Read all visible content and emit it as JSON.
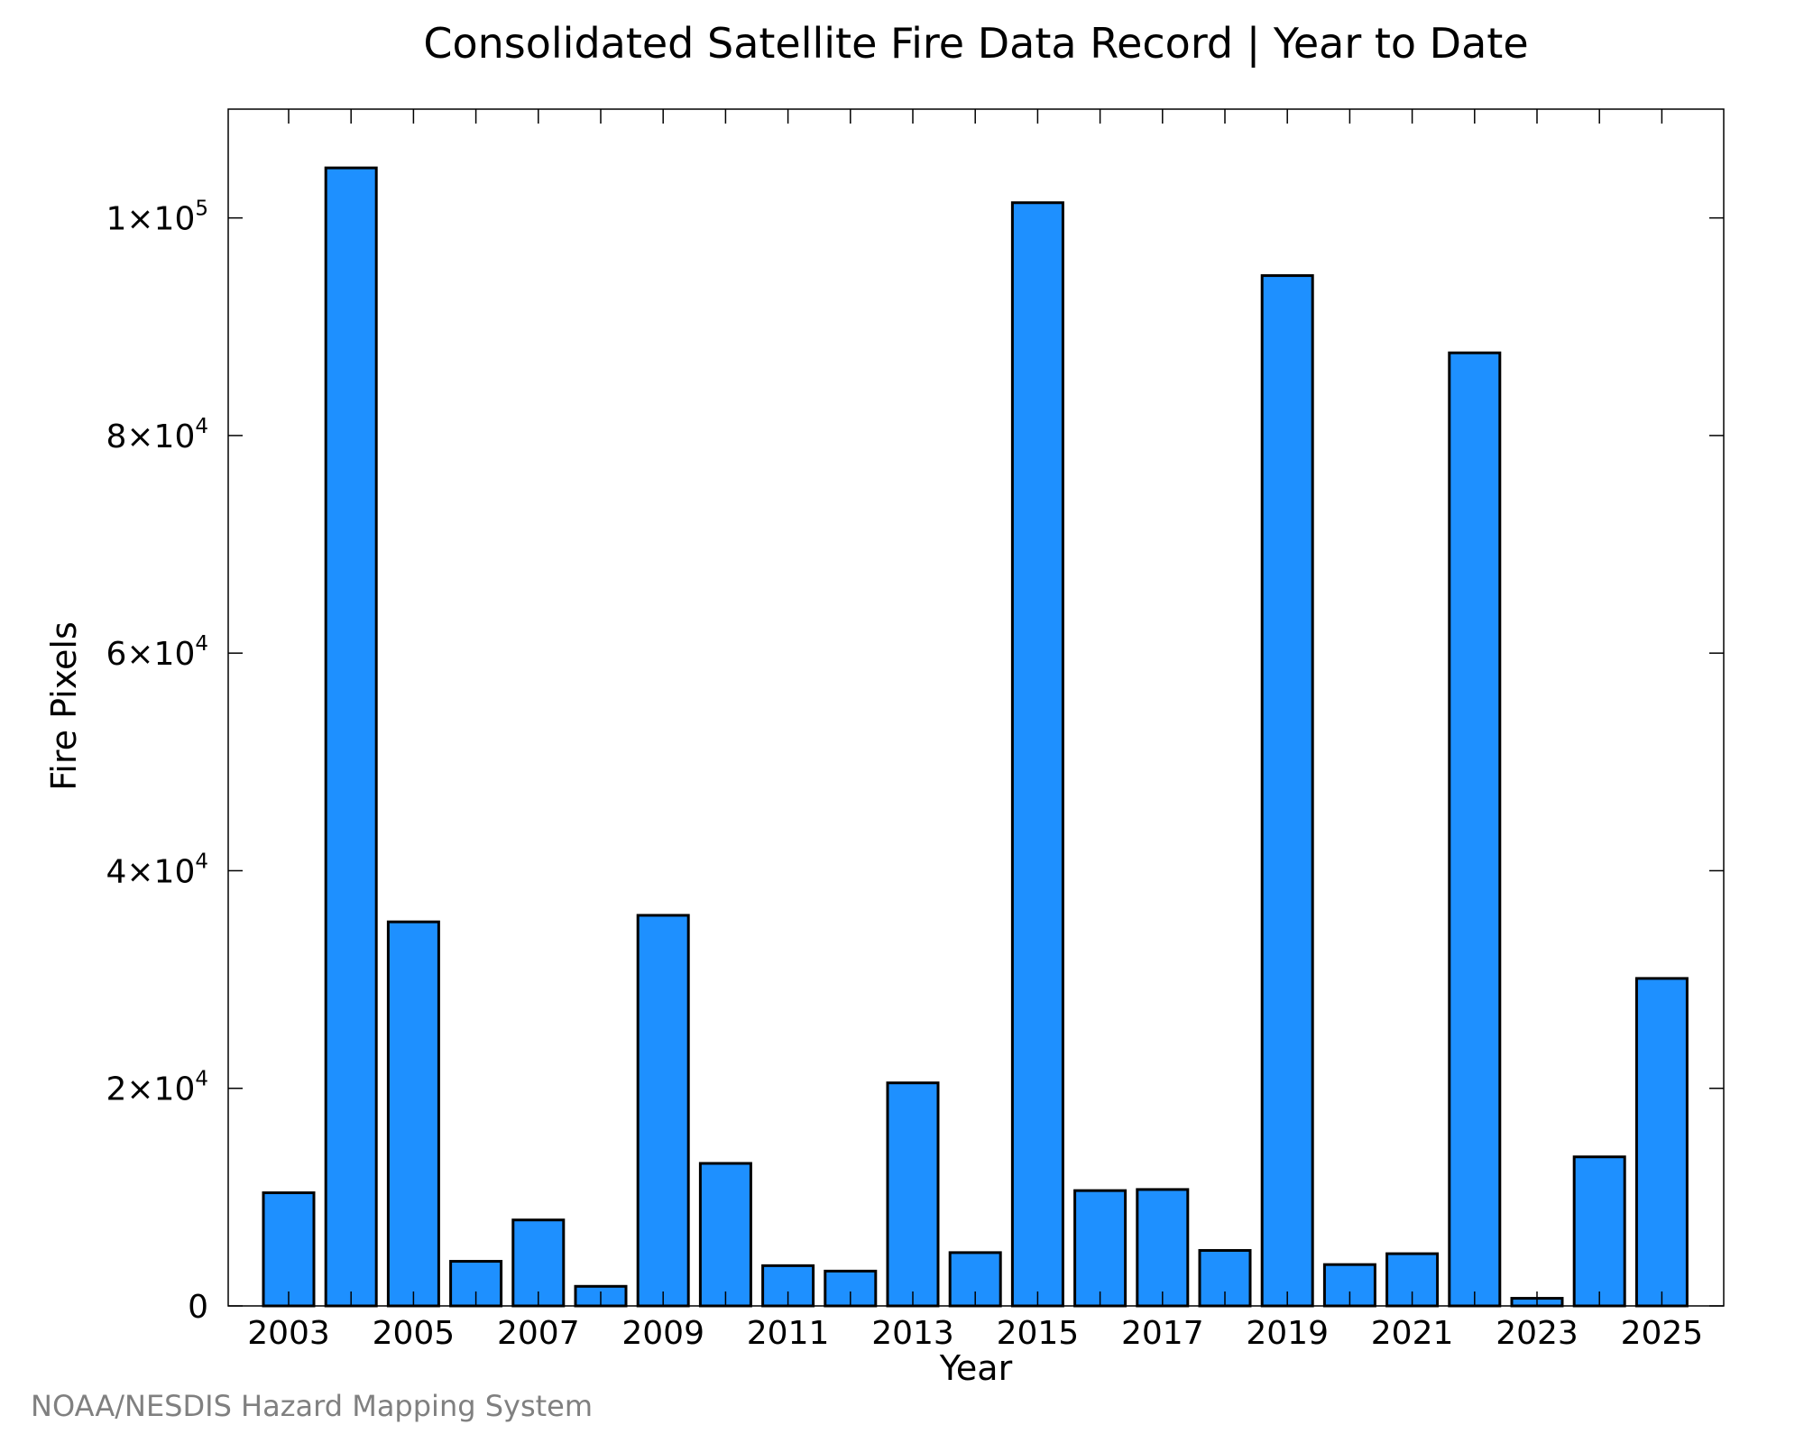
{
  "chart_data": {
    "type": "bar",
    "title": "Consolidated Satellite Fire Data Record | Year to Date",
    "xlabel": "Year",
    "ylabel": "Fire Pixels",
    "categories": [
      "2003",
      "2004",
      "2005",
      "2006",
      "2007",
      "2008",
      "2009",
      "2010",
      "2011",
      "2012",
      "2013",
      "2014",
      "2015",
      "2016",
      "2017",
      "2018",
      "2019",
      "2020",
      "2021",
      "2022",
      "2023",
      "2024",
      "2025"
    ],
    "x_tick_labels": [
      "2003",
      "2005",
      "2007",
      "2009",
      "2011",
      "2013",
      "2015",
      "2017",
      "2019",
      "2021",
      "2023",
      "2025"
    ],
    "values": [
      10400,
      104600,
      35300,
      4100,
      7900,
      1800,
      35900,
      13100,
      3700,
      3200,
      20500,
      4900,
      101400,
      10600,
      10700,
      5100,
      94700,
      3800,
      4800,
      87600,
      700,
      13700,
      30100
    ],
    "ylim": [
      0,
      110000
    ],
    "y_ticks": [
      {
        "value": 0,
        "mantissa": "0",
        "exponent": ""
      },
      {
        "value": 20000,
        "mantissa": "2×10",
        "exponent": "4"
      },
      {
        "value": 40000,
        "mantissa": "4×10",
        "exponent": "4"
      },
      {
        "value": 60000,
        "mantissa": "6×10",
        "exponent": "4"
      },
      {
        "value": 80000,
        "mantissa": "8×10",
        "exponent": "4"
      },
      {
        "value": 100000,
        "mantissa": "1×10",
        "exponent": "5"
      }
    ],
    "bar_color": "#1e90ff",
    "grid": false,
    "legend": "none"
  },
  "credit": "NOAA/NESDIS Hazard Mapping System"
}
